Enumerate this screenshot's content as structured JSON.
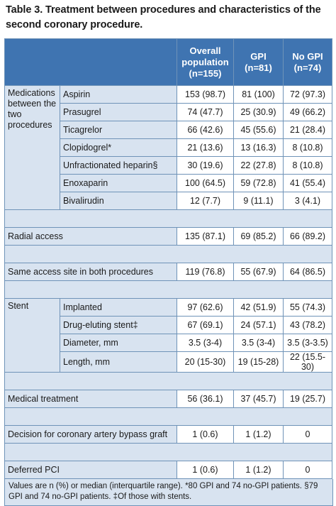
{
  "title": "Table 3. Treatment between procedures and characteristics of the second coronary procedure.",
  "headers": {
    "overall": "Overall population (n=155)",
    "gpi": "GPI (n=81)",
    "nogpi": "No GPI (n=74)"
  },
  "medications": {
    "group_label": "Medications between the two procedures",
    "rows": [
      {
        "label": "Aspirin",
        "overall": "153 (98.7)",
        "gpi": "81 (100)",
        "nogpi": "72 (97.3)"
      },
      {
        "label": "Prasugrel",
        "overall": "74 (47.7)",
        "gpi": "25 (30.9)",
        "nogpi": "49 (66.2)"
      },
      {
        "label": "Ticagrelor",
        "overall": "66 (42.6)",
        "gpi": "45 (55.6)",
        "nogpi": "21 (28.4)"
      },
      {
        "label": "Clopidogrel*",
        "overall": "21 (13.6)",
        "gpi": "13 (16.3)",
        "nogpi": "8 (10.8)"
      },
      {
        "label": "Unfractionated heparin§",
        "overall": "30 (19.6)",
        "gpi": "22 (27.8)",
        "nogpi": "8 (10.8)"
      },
      {
        "label": "Enoxaparin",
        "overall": "100 (64.5)",
        "gpi": "59 (72.8)",
        "nogpi": "41 (55.4)"
      },
      {
        "label": "Bivalirudin",
        "overall": "12 (7.7)",
        "gpi": "9 (11.1)",
        "nogpi": "3 (4.1)"
      }
    ]
  },
  "radial": {
    "label": "Radial access",
    "overall": "135 (87.1)",
    "gpi": "69 (85.2)",
    "nogpi": "66 (89.2)"
  },
  "same_access": {
    "label": "Same access site in both procedures",
    "overall": "119 (76.8)",
    "gpi": "55 (67.9)",
    "nogpi": "64 (86.5)"
  },
  "stent": {
    "group_label": "Stent",
    "rows": [
      {
        "label": "Implanted",
        "overall": "97 (62.6)",
        "gpi": "42 (51.9)",
        "nogpi": "55 (74.3)"
      },
      {
        "label": "Drug-eluting stent‡",
        "overall": "67 (69.1)",
        "gpi": "24 (57.1)",
        "nogpi": "43 (78.2)"
      },
      {
        "label": "Diameter, mm",
        "overall": "3.5 (3-4)",
        "gpi": "3.5 (3-4)",
        "nogpi": "3.5 (3-3.5)"
      },
      {
        "label": "Length, mm",
        "overall": "20 (15-30)",
        "gpi": "19 (15-28)",
        "nogpi": "22 (15.5-30)"
      }
    ]
  },
  "medical_treatment": {
    "label": "Medical treatment",
    "overall": "56 (36.1)",
    "gpi": "37 (45.7)",
    "nogpi": "19 (25.7)"
  },
  "cabg": {
    "label": "Decision for coronary artery bypass graft",
    "overall": "1 (0.6)",
    "gpi": "1 (1.2)",
    "nogpi": "0"
  },
  "deferred_pci": {
    "label": "Deferred PCI",
    "overall": "1 (0.6)",
    "gpi": "1 (1.2)",
    "nogpi": "0"
  },
  "footnote": "Values are n (%) or median (interquartile range). *80 GPI and 74 no-GPI patients. §79 GPI and 74 no-GPI patients. ‡Of those with stents."
}
